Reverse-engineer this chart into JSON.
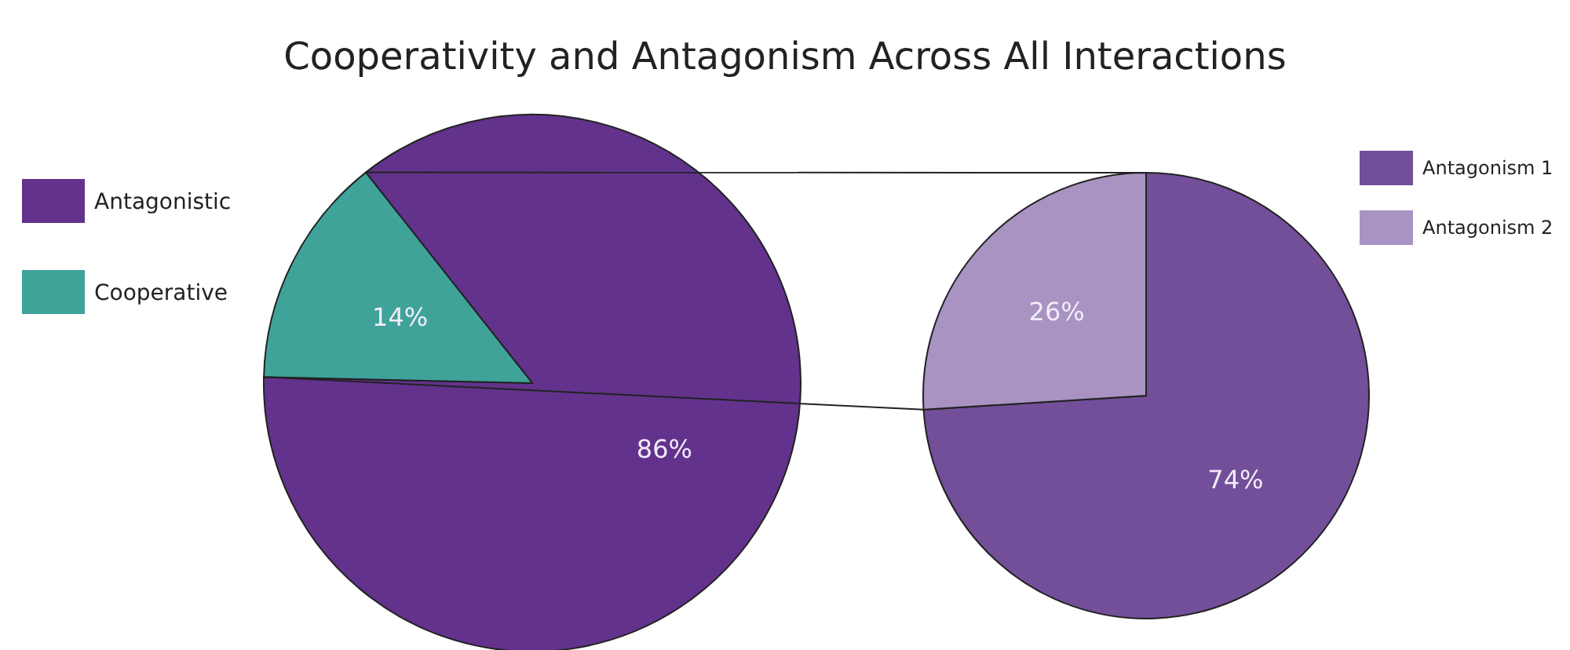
{
  "chart_data": [
    {
      "type": "pie",
      "title": "Cooperativity and Antagonism Across All Interactions",
      "categories": [
        "Antagonistic",
        "Cooperative"
      ],
      "values": [
        86,
        14
      ],
      "colors": [
        "#62328c",
        "#3fa39a"
      ],
      "value_labels": [
        "86%",
        "14%"
      ],
      "legend": "left"
    },
    {
      "type": "pie",
      "categories": [
        "Antagonism 1",
        "Antagonism 2"
      ],
      "values": [
        74,
        26
      ],
      "colors": [
        "#734f9a",
        "#a893c3"
      ],
      "value_labels": [
        "74%",
        "26%"
      ],
      "legend": "top right"
    }
  ]
}
